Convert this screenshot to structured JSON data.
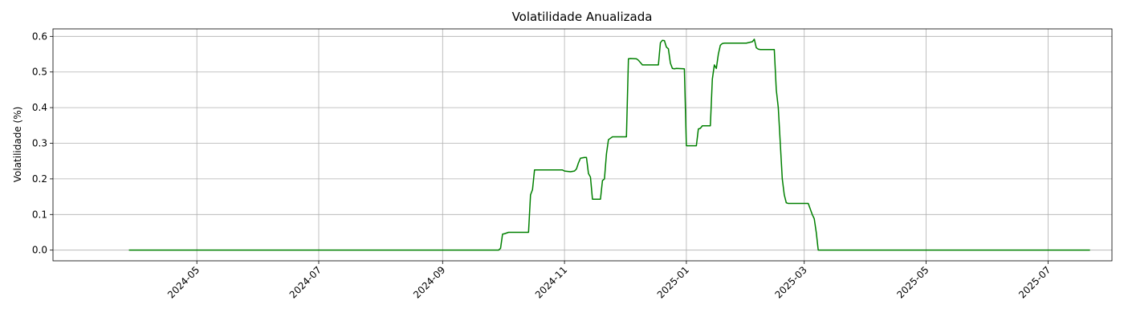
{
  "chart_data": {
    "type": "line",
    "title": "Volatilidade Anualizada",
    "xlabel": "",
    "ylabel": "Volatilidade (%)",
    "xlim": [
      "2024-02-19",
      "2025-08-02"
    ],
    "ylim": [
      -0.03,
      0.621
    ],
    "x_ticks": [
      "2024-05-01",
      "2024-07-01",
      "2024-09-01",
      "2024-11-01",
      "2025-01-01",
      "2025-03-01",
      "2025-05-01",
      "2025-07-01"
    ],
    "x_tick_labels": [
      "2024-05",
      "2024-07",
      "2024-09",
      "2024-11",
      "2025-01",
      "2025-03",
      "2025-05",
      "2025-07"
    ],
    "y_ticks": [
      0.0,
      0.1,
      0.2,
      0.3,
      0.4,
      0.5,
      0.6
    ],
    "y_tick_labels": [
      "0.0",
      "0.1",
      "0.2",
      "0.3",
      "0.4",
      "0.5",
      "0.6"
    ],
    "grid": true,
    "series": [
      {
        "color": "#008000",
        "x": [
          "2024-03-28",
          "2024-09-29",
          "2024-09-30",
          "2024-10-01",
          "2024-10-02",
          "2024-10-03",
          "2024-10-04",
          "2024-10-14",
          "2024-10-15",
          "2024-10-16",
          "2024-10-17",
          "2024-10-31",
          "2024-11-01",
          "2024-11-04",
          "2024-11-06",
          "2024-11-07",
          "2024-11-08",
          "2024-11-09",
          "2024-11-11",
          "2024-11-12",
          "2024-11-13",
          "2024-11-14",
          "2024-11-15",
          "2024-11-19",
          "2024-11-20",
          "2024-11-21",
          "2024-11-22",
          "2024-11-23",
          "2024-11-25",
          "2024-12-02",
          "2024-12-03",
          "2024-12-04",
          "2024-12-07",
          "2024-12-08",
          "2024-12-10",
          "2024-12-18",
          "2024-12-19",
          "2024-12-20",
          "2024-12-21",
          "2024-12-22",
          "2024-12-23",
          "2024-12-24",
          "2024-12-25",
          "2024-12-26",
          "2024-12-27",
          "2024-12-31",
          "2025-01-01",
          "2025-01-02",
          "2025-01-06",
          "2025-01-07",
          "2025-01-08",
          "2025-01-09",
          "2025-01-13",
          "2025-01-14",
          "2025-01-15",
          "2025-01-16",
          "2025-01-17",
          "2025-01-18",
          "2025-01-19",
          "2025-01-20",
          "2025-01-22",
          "2025-01-31",
          "2025-02-03",
          "2025-02-04",
          "2025-02-05",
          "2025-02-06",
          "2025-02-07",
          "2025-02-08",
          "2025-02-14",
          "2025-02-15",
          "2025-02-16",
          "2025-02-17",
          "2025-02-18",
          "2025-02-19",
          "2025-02-20",
          "2025-02-21",
          "2025-03-03",
          "2025-03-05",
          "2025-03-06",
          "2025-03-07",
          "2025-03-08",
          "2025-07-22"
        ],
        "values": [
          0.0,
          0.0,
          0.005,
          0.045,
          0.046,
          0.048,
          0.05,
          0.05,
          0.155,
          0.17,
          0.225,
          0.225,
          0.222,
          0.22,
          0.222,
          0.228,
          0.245,
          0.258,
          0.26,
          0.26,
          0.215,
          0.205,
          0.143,
          0.143,
          0.195,
          0.2,
          0.27,
          0.31,
          0.318,
          0.318,
          0.537,
          0.538,
          0.537,
          0.533,
          0.52,
          0.52,
          0.582,
          0.589,
          0.588,
          0.57,
          0.565,
          0.525,
          0.51,
          0.509,
          0.51,
          0.509,
          0.293,
          0.293,
          0.293,
          0.34,
          0.342,
          0.349,
          0.349,
          0.48,
          0.52,
          0.51,
          0.55,
          0.575,
          0.58,
          0.581,
          0.581,
          0.581,
          0.585,
          0.592,
          0.568,
          0.564,
          0.563,
          0.563,
          0.563,
          0.45,
          0.4,
          0.3,
          0.2,
          0.155,
          0.133,
          0.131,
          0.131,
          0.1,
          0.088,
          0.05,
          0.0,
          0.0
        ]
      }
    ]
  }
}
